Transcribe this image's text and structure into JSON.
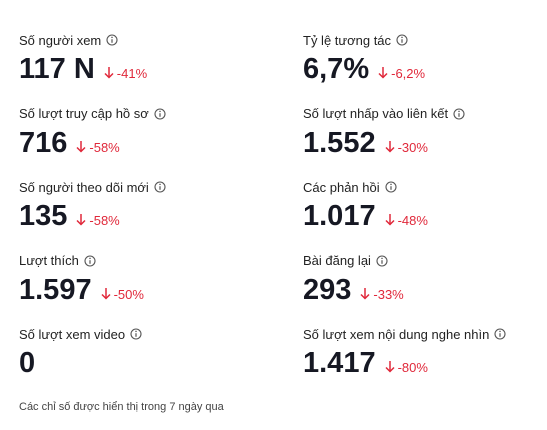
{
  "metrics": [
    {
      "label": "Số người xem",
      "value": "117 N",
      "change": "-41%"
    },
    {
      "label": "Số lượt truy cập hồ sơ",
      "value": "716",
      "change": "-58%"
    },
    {
      "label": "Số người theo dõi mới",
      "value": "135",
      "change": "-58%"
    },
    {
      "label": "Lượt thích",
      "value": "1.597",
      "change": "-50%"
    },
    {
      "label": "Số lượt xem video",
      "value": "0"
    },
    {
      "label": "Tỷ lệ tương tác",
      "value": "6,7%",
      "change": "-6,2%"
    },
    {
      "label": "Số lượt nhấp vào liên kết",
      "value": "1.552",
      "change": "-30%"
    },
    {
      "label": "Các phản hồi",
      "value": "1.017",
      "change": "-48%"
    },
    {
      "label": "Bài đăng lại",
      "value": "293",
      "change": "-33%"
    },
    {
      "label": "Số lượt xem nội dung nghe nhìn",
      "value": "1.417",
      "change": "-80%"
    }
  ],
  "footer": "Các chỉ số được hiển thị trong 7 ngày qua"
}
